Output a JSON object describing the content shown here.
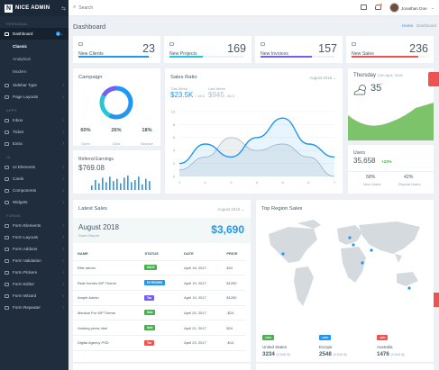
{
  "brand": {
    "logo": "N",
    "name": "NICE ADMIN"
  },
  "topbar": {
    "search_placeholder": "Search",
    "user_name": "Jonathan Doe"
  },
  "sidebar": {
    "sections": [
      "PERSONAL",
      "APPS",
      "UI",
      "FORMS"
    ],
    "dashboard": {
      "label": "Dashboard",
      "badge": "4"
    },
    "dashboard_subs": [
      "Classic",
      "Analytical",
      "Modern"
    ],
    "personal_items": [
      "Sidebar Type",
      "Page Layouts"
    ],
    "app_items": [
      "Inbox",
      "Ticket",
      "Extra"
    ],
    "ui_items": [
      "UI Elements",
      "Cards",
      "Components",
      "Widgets"
    ],
    "form_items": [
      "Form Elements",
      "Form Layouts",
      "Form Addons",
      "Form Validation",
      "Form Pickers",
      "Form Editor",
      "Form Wizard",
      "Form Repeater"
    ]
  },
  "page": {
    "title": "Dashboard",
    "breadcrumb_home": "Home",
    "breadcrumb_current": "Dashboard"
  },
  "stats": [
    {
      "label": "New Clients",
      "value": "23",
      "color": "#2196f3",
      "fill": 0.95
    },
    {
      "label": "New Projects",
      "value": "169",
      "color": "#26c6da",
      "fill": 0.45
    },
    {
      "label": "New Invoices",
      "value": "157",
      "color": "#7460ee",
      "fill": 0.7
    },
    {
      "label": "New Sales",
      "value": "236",
      "color": "#ef5350",
      "fill": 0.9
    }
  ],
  "campaign": {
    "title": "Campaign",
    "items": [
      {
        "value": "60%",
        "label": "Open",
        "color": "#2196f3"
      },
      {
        "value": "26%",
        "label": "Click",
        "color": "#26c6da"
      },
      {
        "value": "18%",
        "label": "Bounce",
        "color": "#7460ee"
      }
    ]
  },
  "sales_ratio": {
    "title": "Sales Ratio",
    "period": "August 2018",
    "this_week_label": "This Week",
    "this_week_value": "$23.5K",
    "this_week_change": "↑ 18.6",
    "last_week_label": "Last Week",
    "last_week_value": "$945",
    "last_week_change": "↓ 46.3"
  },
  "chart_data": {
    "type": "area",
    "x": [
      1,
      2,
      3,
      4,
      5,
      6,
      7
    ],
    "series": [
      {
        "values": [
          2,
          5,
          3,
          6,
          9,
          5,
          3
        ],
        "color": "#2196f3"
      },
      {
        "values": [
          1,
          3,
          6,
          4,
          5,
          3,
          0
        ],
        "color": "#b0bec5"
      }
    ],
    "xlim": [
      1,
      7
    ],
    "ylim": [
      0,
      10
    ],
    "yticks": [
      "0",
      "2",
      "4",
      "6",
      "8",
      "10"
    ],
    "xticks": [
      "1",
      "2",
      "3",
      "4",
      "5",
      "6",
      "7"
    ]
  },
  "referral": {
    "title": "Referral Earnings",
    "value": "$769.08",
    "bars": [
      4,
      9,
      6,
      11,
      7,
      12,
      8,
      10,
      6,
      11,
      13,
      7,
      9,
      12,
      5,
      10,
      8
    ]
  },
  "weather": {
    "day": "Thursday",
    "date": "12th April, 2018",
    "temp": "35",
    "unit": "°"
  },
  "users": {
    "title": "Users",
    "value": "35,658",
    "change": "+23%",
    "new_value": "58%",
    "new_label": "New Users",
    "repeat_value": "42%",
    "repeat_label": "Repeat Users"
  },
  "latest_sales": {
    "title": "Latest Sales",
    "period": "August 2018",
    "report_month": "August 2018",
    "report_label": "Sales Report",
    "report_value": "$3,690",
    "columns": [
      "NAME",
      "STATUS",
      "DATE",
      "PRICE"
    ],
    "rows": [
      {
        "name": "Elite admin",
        "status": "SALE",
        "color": "#4caf50",
        "date": "April 18, 2017",
        "price": "$24"
      },
      {
        "name": "Real Homes WP Theme",
        "status": "EXTENDED",
        "color": "#2196f3",
        "date": "April 19, 2017",
        "price": "$1250"
      },
      {
        "name": "Ample Admin",
        "status": "Tax",
        "color": "#7460ee",
        "date": "April 19, 2017",
        "price": "$1250"
      },
      {
        "name": "Medical Pro WP Theme",
        "status": "Sale",
        "color": "#4caf50",
        "date": "April 20, 2017",
        "price": "-$24"
      },
      {
        "name": "Hosting press html",
        "status": "Sale",
        "color": "#4caf50",
        "date": "April 21, 2017",
        "price": "$24"
      },
      {
        "name": "Digital Agency PSD",
        "status": "Tax",
        "color": "#ef5350",
        "date": "April 23, 2017",
        "price": "-$14"
      }
    ]
  },
  "region": {
    "title": "Top Region Sales",
    "stats": [
      {
        "badge": "+56%",
        "color": "#4caf50",
        "country": "United States",
        "value": "3234",
        "sub": "(3,540 $)"
      },
      {
        "badge": "+26%",
        "color": "#2196f3",
        "country": "Europe",
        "value": "2548",
        "sub": "(3,540 $)"
      },
      {
        "badge": "-18%",
        "color": "#ef5350",
        "country": "Australia",
        "value": "1476",
        "sub": "(3,540 $)"
      }
    ]
  }
}
